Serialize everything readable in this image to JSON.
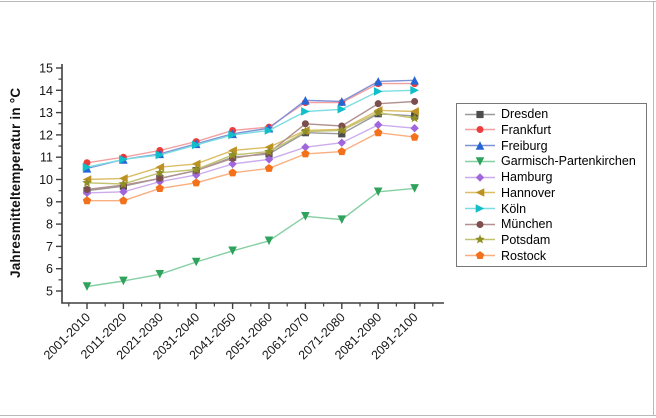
{
  "chart_data": {
    "type": "line",
    "title": "",
    "xlabel": "",
    "ylabel": "Jahresmitteltemperatur in °C",
    "categories": [
      "2001-2010",
      "2011-2020",
      "2021-2030",
      "2031-2040",
      "2041-2050",
      "2051-2060",
      "2061-2070",
      "2071-2080",
      "2081-2090",
      "2091-2100"
    ],
    "y_ticks": [
      15,
      14,
      13,
      12,
      11,
      10,
      9,
      8,
      7,
      6,
      5
    ],
    "ylim": [
      4.5,
      15.2
    ],
    "grid": false,
    "legend_position": "right",
    "x_tick_rotation": -45,
    "axis_color": "#3f3f3f",
    "series": [
      {
        "name": "Dresden",
        "marker": "square",
        "color": "#4d4d4d",
        "line_color": "#999999",
        "values": [
          9.5,
          9.7,
          10.05,
          10.4,
          11.0,
          11.15,
          12.1,
          12.05,
          12.95,
          12.85
        ]
      },
      {
        "name": "Frankfurt",
        "marker": "circle",
        "color": "#ec3c3c",
        "line_color": "#f4a0a0",
        "values": [
          10.75,
          11.0,
          11.3,
          11.7,
          12.2,
          12.35,
          13.45,
          13.45,
          14.3,
          14.3
        ]
      },
      {
        "name": "Freiburg",
        "marker": "triangle-up",
        "color": "#2566d6",
        "line_color": "#8091d6",
        "values": [
          10.5,
          10.9,
          11.15,
          11.6,
          12.05,
          12.3,
          13.55,
          13.5,
          14.4,
          14.45
        ]
      },
      {
        "name": "Garmisch-Partenkirchen",
        "marker": "triangle-down",
        "color": "#2fa35c",
        "line_color": "#85cfa3",
        "values": [
          5.2,
          5.45,
          5.75,
          6.3,
          6.8,
          7.25,
          8.35,
          8.2,
          9.45,
          9.6
        ]
      },
      {
        "name": "Hamburg",
        "marker": "diamond",
        "color": "#a066db",
        "line_color": "#cdacec",
        "values": [
          9.4,
          9.45,
          9.9,
          10.2,
          10.7,
          10.9,
          11.45,
          11.65,
          12.45,
          12.3
        ]
      },
      {
        "name": "Hannover",
        "marker": "triangle-left",
        "color": "#be9222",
        "line_color": "#dcbe66",
        "values": [
          10.0,
          10.05,
          10.55,
          10.7,
          11.3,
          11.45,
          12.2,
          12.25,
          13.1,
          13.05
        ]
      },
      {
        "name": "Köln",
        "marker": "triangle-right",
        "color": "#12bfc9",
        "line_color": "#7cdee2",
        "values": [
          10.55,
          10.9,
          11.1,
          11.55,
          12.0,
          12.2,
          13.05,
          13.15,
          13.95,
          14.0
        ]
      },
      {
        "name": "München",
        "marker": "circle",
        "color": "#7d4e4e",
        "line_color": "#b29090",
        "values": [
          9.55,
          9.75,
          10.05,
          10.4,
          10.95,
          11.2,
          12.5,
          12.4,
          13.4,
          13.5
        ]
      },
      {
        "name": "Potsdam",
        "marker": "star",
        "color": "#8f8f25",
        "line_color": "#c2c272",
        "values": [
          9.85,
          9.8,
          10.3,
          10.45,
          11.1,
          11.25,
          12.15,
          12.2,
          13.0,
          12.75
        ]
      },
      {
        "name": "Rostock",
        "marker": "pentagon",
        "color": "#f4711c",
        "line_color": "#faaf80",
        "values": [
          9.05,
          9.05,
          9.6,
          9.85,
          10.3,
          10.5,
          11.15,
          11.25,
          12.1,
          11.9
        ]
      }
    ]
  }
}
